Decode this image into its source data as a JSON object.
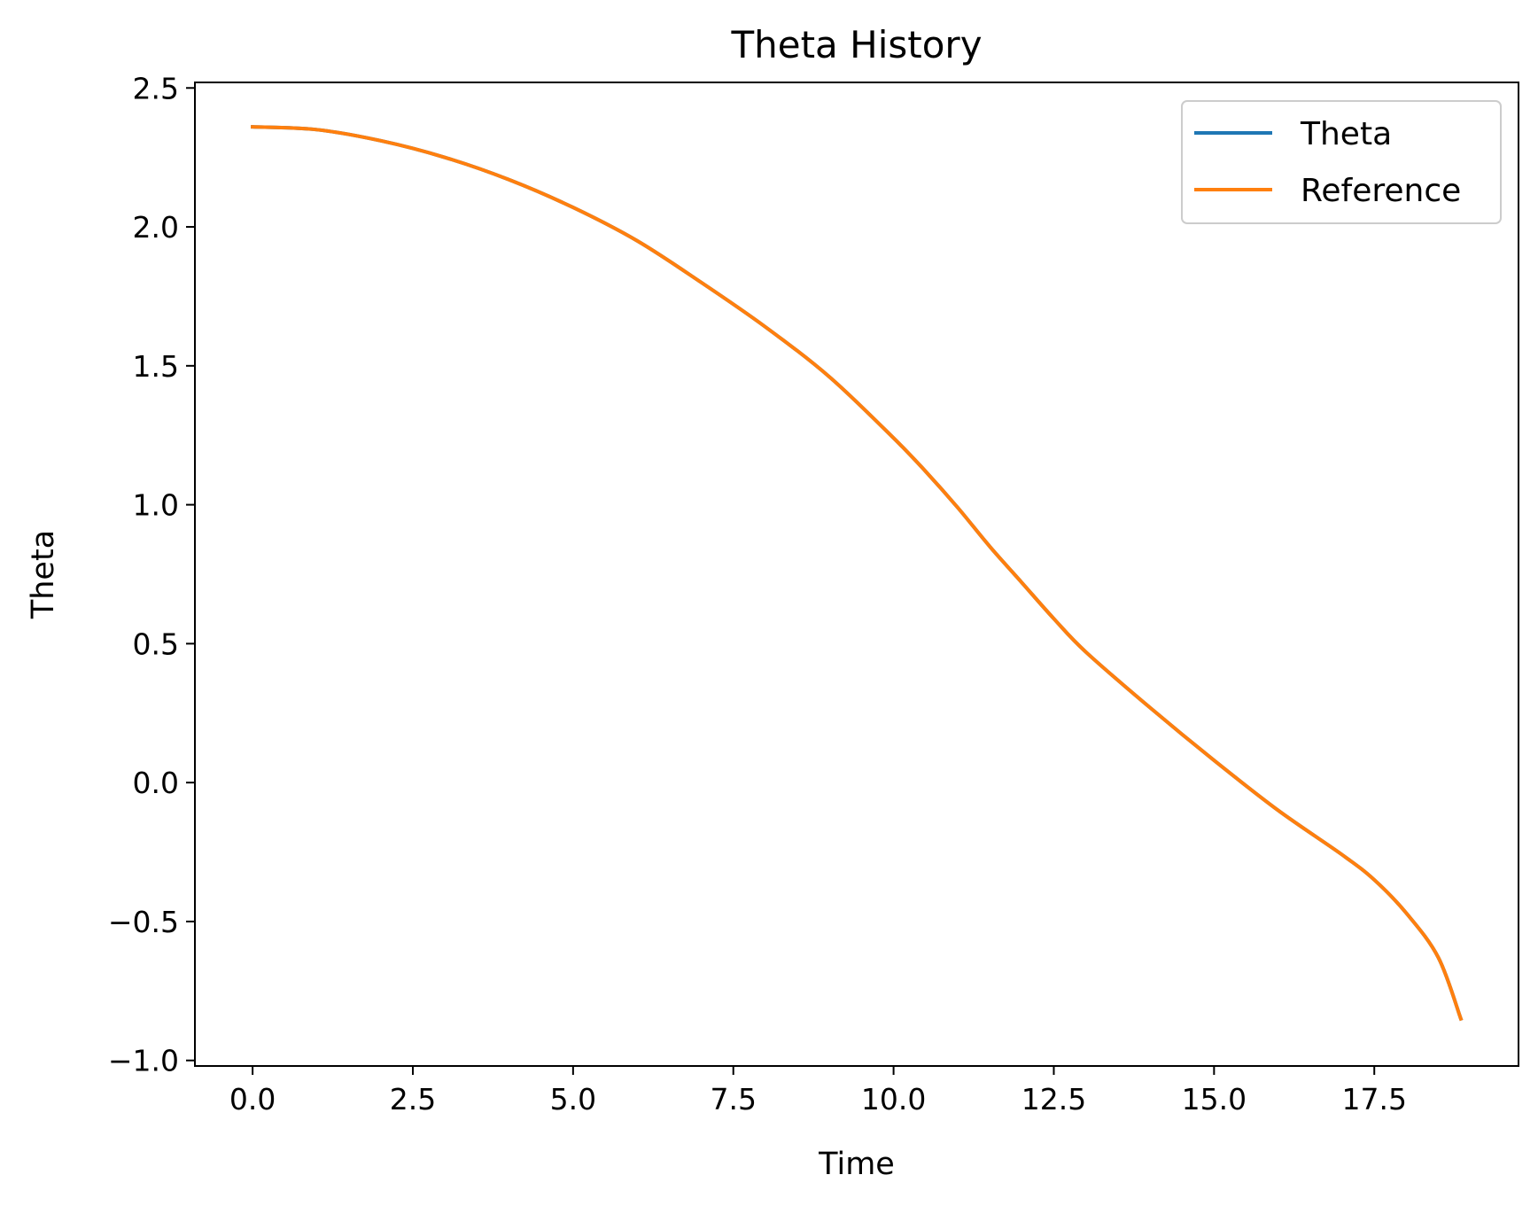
{
  "chart_data": {
    "type": "line",
    "title": "Theta History",
    "xlabel": "Time",
    "ylabel": "Theta",
    "xlim": [
      -0.9,
      19.75
    ],
    "ylim": [
      -1.02,
      2.52
    ],
    "xticks": [
      0.0,
      2.5,
      5.0,
      7.5,
      10.0,
      12.5,
      15.0,
      17.5
    ],
    "xtick_labels": [
      "0.0",
      "2.5",
      "5.0",
      "7.5",
      "10.0",
      "12.5",
      "15.0",
      "17.5"
    ],
    "yticks": [
      -1.0,
      -0.5,
      0.0,
      0.5,
      1.0,
      1.5,
      2.0,
      2.5
    ],
    "ytick_labels": [
      "−1.0",
      "−0.5",
      "0.0",
      "0.5",
      "1.0",
      "1.5",
      "2.0",
      "2.5"
    ],
    "grid": false,
    "legend_position": "top-right",
    "x": [
      0.0,
      1.0,
      2.0,
      3.0,
      4.0,
      5.0,
      6.0,
      7.0,
      8.0,
      9.0,
      10.0,
      10.5,
      11.0,
      11.5,
      12.0,
      12.5,
      13.0,
      14.0,
      15.0,
      16.0,
      17.0,
      17.5,
      18.0,
      18.5,
      18.85
    ],
    "series": [
      {
        "name": "Theta",
        "color": "#1f77b4",
        "values": [
          2.36,
          2.35,
          2.31,
          2.25,
          2.17,
          2.07,
          1.95,
          1.8,
          1.64,
          1.46,
          1.24,
          1.12,
          0.99,
          0.85,
          0.72,
          0.59,
          0.47,
          0.27,
          0.08,
          -0.1,
          -0.26,
          -0.35,
          -0.47,
          -0.63,
          -0.85
        ]
      },
      {
        "name": "Reference",
        "color": "#ff7f0e",
        "values": [
          2.36,
          2.35,
          2.31,
          2.25,
          2.17,
          2.07,
          1.95,
          1.8,
          1.64,
          1.46,
          1.24,
          1.12,
          0.99,
          0.85,
          0.72,
          0.59,
          0.47,
          0.27,
          0.08,
          -0.1,
          -0.26,
          -0.35,
          -0.47,
          -0.63,
          -0.85
        ]
      }
    ]
  }
}
